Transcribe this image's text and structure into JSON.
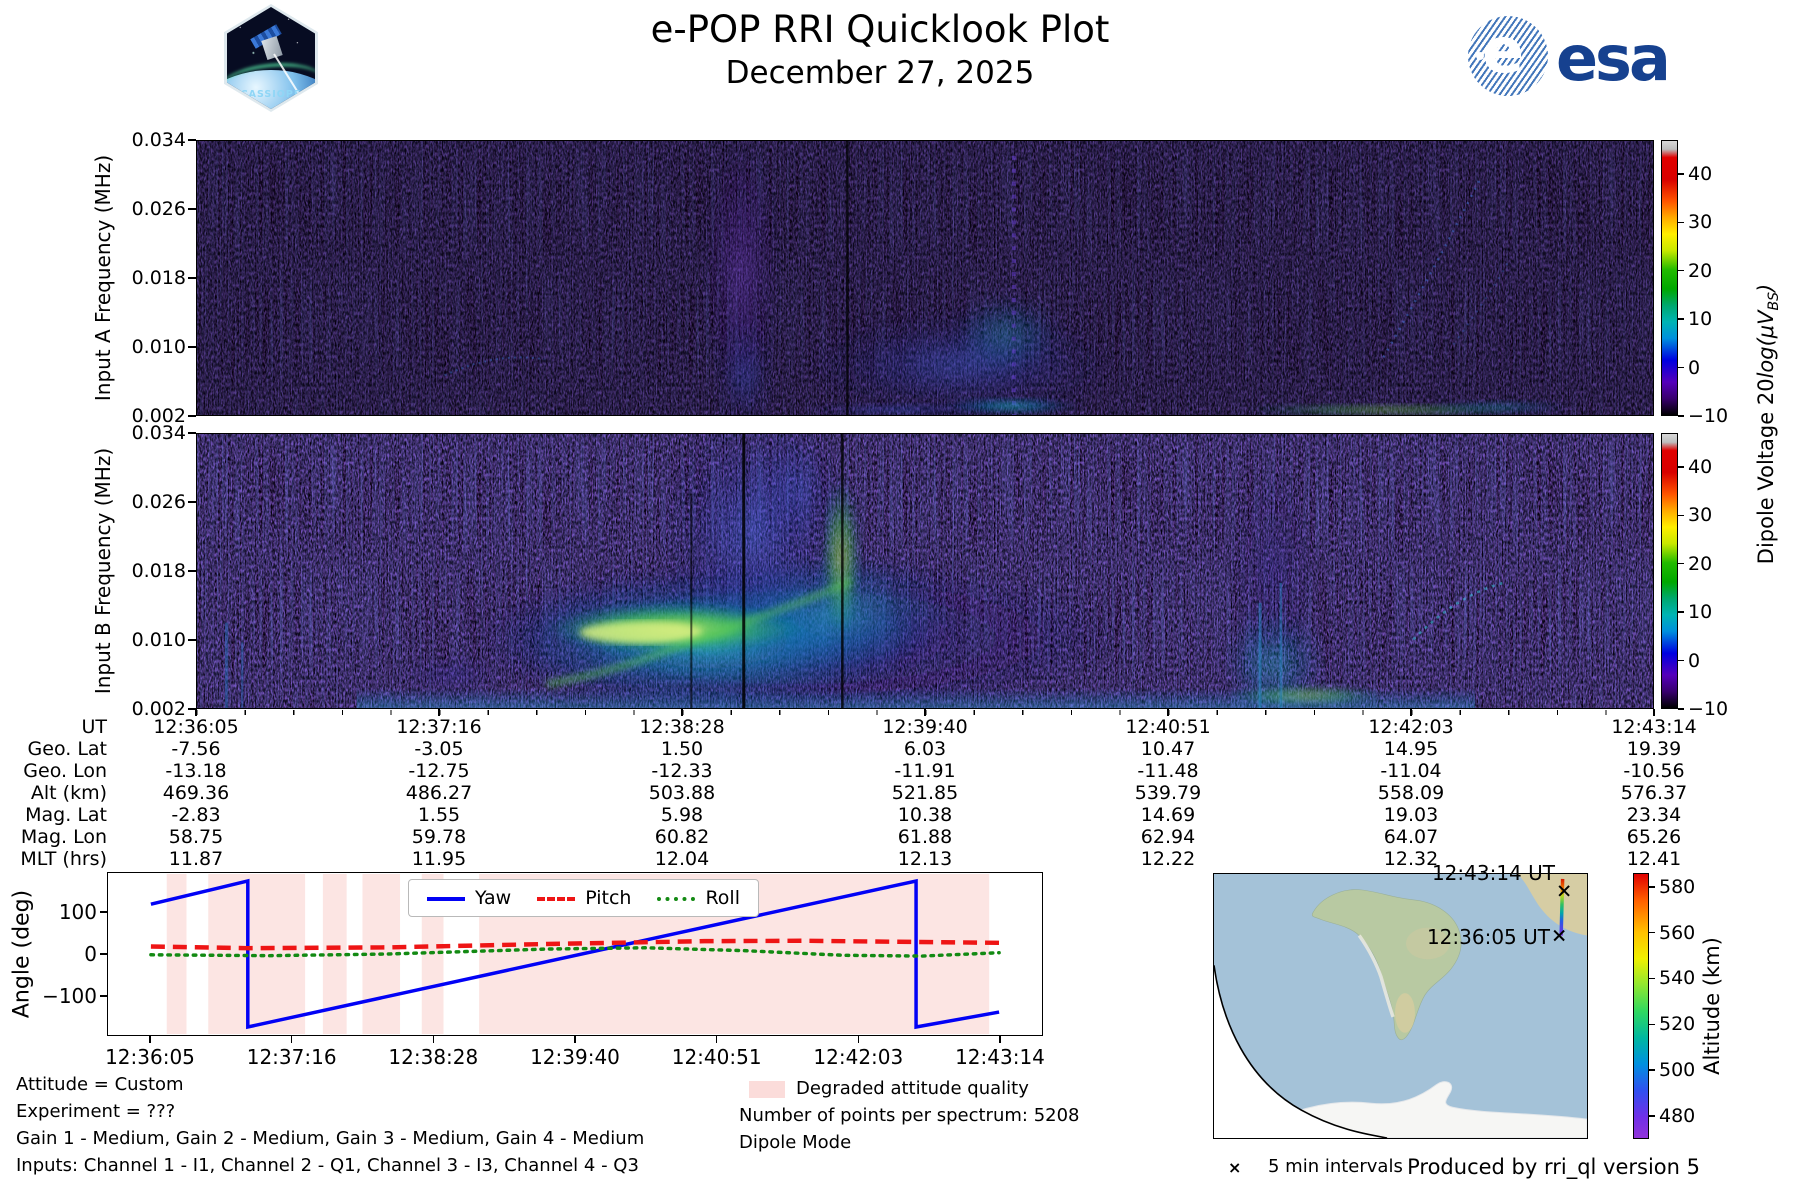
{
  "header": {
    "title": "e-POP RRI Quicklook Plot",
    "date": "December 27, 2025",
    "cassiope_label": "CASSIOPE",
    "esa_label": "esa"
  },
  "spectrograms": {
    "panel_a_ylabel": "Input A Frequency (MHz)",
    "panel_b_ylabel": "Input B Frequency (MHz)",
    "freq_ticks": [
      "0.034",
      "0.026",
      "0.018",
      "0.010",
      "0.002"
    ],
    "colorbar_ticks": [
      "40",
      "30",
      "20",
      "10",
      "0",
      "−10"
    ],
    "colorbar_label_text": "Dipole Voltage 20",
    "colorbar_label_math": "log(μV",
    "colorbar_label_sub": "BS",
    "colorbar_label_close": ")"
  },
  "ephemeris": {
    "rows": [
      {
        "label": "UT",
        "values": [
          "12:36:05",
          "12:37:16",
          "12:38:28",
          "12:39:40",
          "12:40:51",
          "12:42:03",
          "12:43:14"
        ]
      },
      {
        "label": "Geo. Lat",
        "values": [
          "-7.56",
          "-3.05",
          "1.50",
          "6.03",
          "10.47",
          "14.95",
          "19.39"
        ]
      },
      {
        "label": "Geo. Lon",
        "values": [
          "-13.18",
          "-12.75",
          "-12.33",
          "-11.91",
          "-11.48",
          "-11.04",
          "-10.56"
        ]
      },
      {
        "label": "Alt (km)",
        "values": [
          "469.36",
          "486.27",
          "503.88",
          "521.85",
          "539.79",
          "558.09",
          "576.37"
        ]
      },
      {
        "label": "Mag. Lat",
        "values": [
          "-2.83",
          "1.55",
          "5.98",
          "10.38",
          "14.69",
          "19.03",
          "23.34"
        ]
      },
      {
        "label": "Mag. Lon",
        "values": [
          "58.75",
          "59.78",
          "60.82",
          "61.88",
          "62.94",
          "64.07",
          "65.26"
        ]
      },
      {
        "label": "MLT (hrs)",
        "values": [
          "11.87",
          "11.95",
          "12.04",
          "12.13",
          "12.22",
          "12.32",
          "12.41"
        ]
      }
    ]
  },
  "attitude": {
    "ylabel": "Angle (deg)",
    "yticks": [
      "100",
      "0",
      "−100"
    ],
    "xticks": [
      "12:36:05",
      "12:37:16",
      "12:38:28",
      "12:39:40",
      "12:40:51",
      "12:42:03",
      "12:43:14"
    ],
    "legend": [
      {
        "label": "Yaw",
        "color": "#0202f5",
        "style": "solid"
      },
      {
        "label": "Pitch",
        "color": "#ee1515",
        "style": "dashed"
      },
      {
        "label": "Roll",
        "color": "#138a13",
        "style": "dotted"
      }
    ]
  },
  "annotations": {
    "attitude_line": "Attitude = Custom",
    "experiment_line": "Experiment = ???",
    "gain_line": "Gain 1 - Medium, Gain 2 - Medium, Gain 3 - Medium, Gain 4 - Medium",
    "inputs_line": "Inputs: Channel 1 - I1, Channel 2 - Q1, Channel 3 - I3, Channel 4 - Q3",
    "degraded_label": "Degraded attitude quality",
    "degraded_color": "#fbdcda",
    "points_line": "Number of points per spectrum: 5208",
    "dipole_line": "Dipole Mode"
  },
  "map": {
    "end_time_label": "12:43:14 UT",
    "start_time_label": "12:36:05 UT",
    "marker_glyph": "×",
    "intervals_label": "5 min intervals",
    "alt_colorbar_label": "Altitude (km)",
    "alt_ticks": [
      "580",
      "560",
      "540",
      "520",
      "500",
      "480"
    ]
  },
  "footer": {
    "produced_by": "Produced by rri_ql version 5"
  },
  "chart_data": [
    {
      "type": "heatmap",
      "name": "input_a_spectrogram",
      "ylabel": "Input A Frequency (MHz)",
      "ylim_mhz": [
        0.002,
        0.034
      ],
      "yticks_mhz": [
        0.034,
        0.026,
        0.018,
        0.01,
        0.002
      ],
      "x_ticks_ut": [
        "12:36:05",
        "12:37:16",
        "12:38:28",
        "12:39:40",
        "12:40:51",
        "12:42:03",
        "12:43:14"
      ],
      "colorbar": {
        "label": "Dipole Voltage 20log(μV_BS)",
        "ticks": [
          40,
          30,
          20,
          10,
          0,
          -10
        ],
        "range": [
          -10,
          47
        ],
        "colormap": "nipy_spectral"
      },
      "features": "mostly near background; faint purple-blue plume near 12:38:15 spanning most frequencies; diffuse blue activity below 0.012 MHz 12:38-12:39:30; periodic dashed column near 12:39:20; faint rising arcs near 12:42:30; weak cyan-green band along bottom edge 12:40-12:43"
    },
    {
      "type": "heatmap",
      "name": "input_b_spectrogram",
      "ylabel": "Input B Frequency (MHz)",
      "ylim_mhz": [
        0.002,
        0.034
      ],
      "yticks_mhz": [
        0.034,
        0.026,
        0.018,
        0.01,
        0.002
      ],
      "x_ticks_ut": [
        "12:36:05",
        "12:37:16",
        "12:38:28",
        "12:39:40",
        "12:40:51",
        "12:42:03",
        "12:43:14"
      ],
      "colorbar": {
        "label": "Dipole Voltage 20log(μV_BS)",
        "ticks": [
          40,
          30,
          20,
          10,
          0,
          -10
        ],
        "range": [
          -10,
          47
        ],
        "colormap": "nipy_spectral"
      },
      "features": "strong broadband emission 12:37:40-12:39:10 below ~0.016 MHz with bright yellow-green core near 0.010 MHz (levels ~20-30); blue plume extending to 0.034 MHz near 12:38:30; secondary weak emission 12:40:50-12:41:10 with green patches near 0.002-0.004 MHz; faint rising arc near 12:42:40"
    },
    {
      "type": "line",
      "name": "attitude_angles",
      "ylabel": "Angle (deg)",
      "ylim": [
        -195,
        195
      ],
      "yticks": [
        100,
        0,
        -100
      ],
      "x_axis_seconds": [
        0,
        429
      ],
      "x_ticks_ut": [
        "12:36:05",
        "12:37:16",
        "12:38:28",
        "12:39:40",
        "12:40:51",
        "12:42:03",
        "12:43:14"
      ],
      "series": [
        {
          "name": "Yaw",
          "style": "solid",
          "color": "#0202f5",
          "points_t_deg": [
            [
              0,
              120
            ],
            [
              49,
              176
            ],
            [
              49,
              -176
            ],
            [
              387,
              176
            ],
            [
              387,
              -176
            ],
            [
              429,
              -140
            ]
          ]
        },
        {
          "name": "Pitch",
          "style": "dashed",
          "color": "#ee1515",
          "points_t_deg": [
            [
              0,
              18
            ],
            [
              49,
              14
            ],
            [
              120,
              16
            ],
            [
              200,
              24
            ],
            [
              280,
              31
            ],
            [
              330,
              32
            ],
            [
              429,
              27
            ]
          ]
        },
        {
          "name": "Roll",
          "style": "dotted",
          "color": "#138a13",
          "points_t_deg": [
            [
              0,
              -2
            ],
            [
              60,
              -4
            ],
            [
              120,
              0
            ],
            [
              200,
              12
            ],
            [
              250,
              15
            ],
            [
              300,
              8
            ],
            [
              350,
              -3
            ],
            [
              390,
              -5
            ],
            [
              429,
              3
            ]
          ]
        }
      ],
      "degraded_bands_t": [
        [
          8,
          18
        ],
        [
          29,
          78
        ],
        [
          87,
          99
        ],
        [
          107,
          126
        ],
        [
          137,
          148
        ],
        [
          166,
          424
        ]
      ],
      "legend_position": "upper center"
    },
    {
      "type": "line",
      "name": "ground_track_map",
      "region": "South America / South Atlantic",
      "track": {
        "lat_start": -7.56,
        "lon_start": -13.18,
        "alt_start_km": 469.36,
        "lat_end": 19.39,
        "lon_end": -10.56,
        "alt_end_km": 576.37
      },
      "colorbar": {
        "label": "Altitude (km)",
        "ticks": [
          580,
          560,
          540,
          520,
          500,
          480
        ],
        "colormap": "rainbow"
      },
      "marker_note": "5 min intervals"
    },
    {
      "type": "table",
      "name": "ephemeris",
      "rows_ref": "ephemeris.rows"
    }
  ]
}
